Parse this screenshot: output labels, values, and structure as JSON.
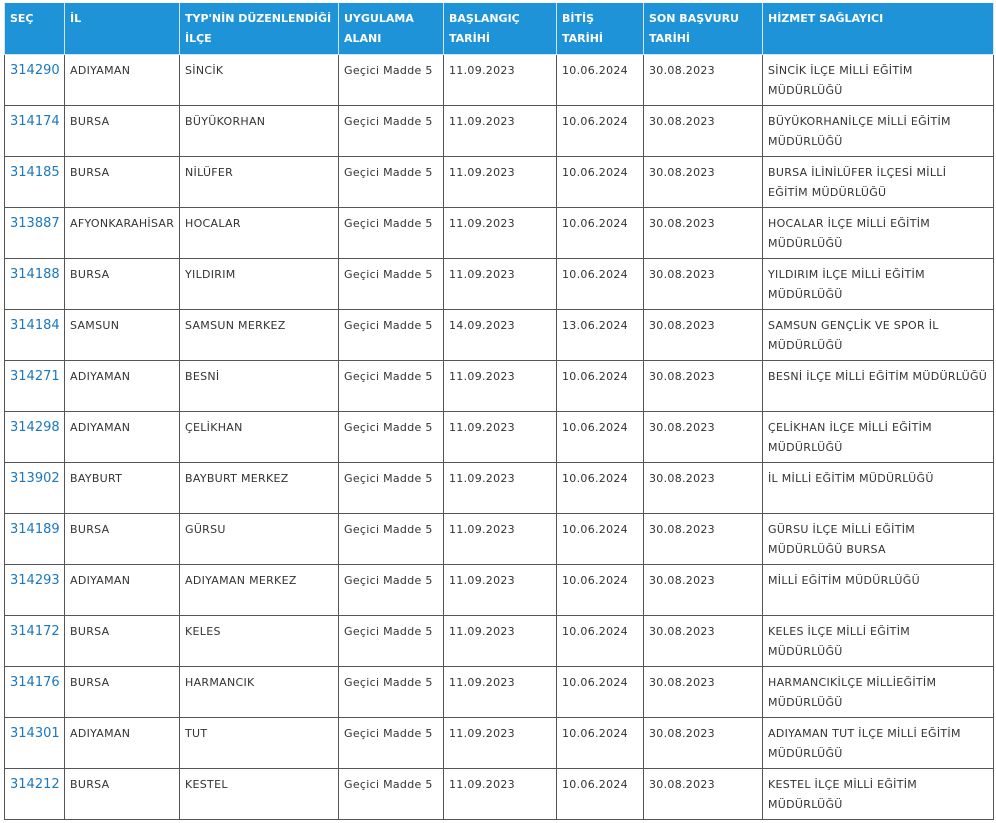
{
  "table": {
    "headers": [
      "SEÇ",
      "İL",
      "TYP'NİN DÜZENLENDİĞİ İLÇE",
      "UYGULAMA ALANI",
      "BAŞLANGIÇ TARİHİ",
      "BİTİŞ TARİHİ",
      "SON BAŞVURU TARİHİ",
      "HİZMET SAĞLAYICI"
    ],
    "rows": [
      [
        "314290",
        "ADIYAMAN",
        "SİNCİK",
        "Geçici Madde 5",
        "11.09.2023",
        "10.06.2024",
        "30.08.2023",
        "SİNCİK İLÇE MİLLİ EĞİTİM MÜDÜRLÜĞÜ"
      ],
      [
        "314174",
        "BURSA",
        "BÜYÜKORHAN",
        "Geçici Madde 5",
        "11.09.2023",
        "10.06.2024",
        "30.08.2023",
        "BÜYÜKORHANİLÇE MİLLİ EĞİTİM MÜDÜRLÜĞÜ"
      ],
      [
        "314185",
        "BURSA",
        "NİLÜFER",
        "Geçici Madde 5",
        "11.09.2023",
        "10.06.2024",
        "30.08.2023",
        "BURSA İLİNİLÜFER İLÇESİ MİLLİ EĞİTİM MÜDÜRLÜĞÜ"
      ],
      [
        "313887",
        "AFYONKARAHİSAR",
        "HOCALAR",
        "Geçici Madde 5",
        "11.09.2023",
        "10.06.2024",
        "30.08.2023",
        "HOCALAR İLÇE MİLLİ EĞİTİM MÜDÜRLÜĞÜ"
      ],
      [
        "314188",
        "BURSA",
        "YILDIRIM",
        "Geçici Madde 5",
        "11.09.2023",
        "10.06.2024",
        "30.08.2023",
        "YILDIRIM İLÇE MİLLİ EĞİTİM MÜDÜRLÜĞÜ"
      ],
      [
        "314184",
        "SAMSUN",
        "SAMSUN MERKEZ",
        "Geçici Madde 5",
        "14.09.2023",
        "13.06.2024",
        "30.08.2023",
        "SAMSUN GENÇLİK VE SPOR İL MÜDÜRLÜĞÜ"
      ],
      [
        "314271",
        "ADIYAMAN",
        "BESNİ",
        "Geçici Madde 5",
        "11.09.2023",
        "10.06.2024",
        "30.08.2023",
        "BESNİ İLÇE MİLLİ EĞİTİM MÜDÜRLÜĞÜ"
      ],
      [
        "314298",
        "ADIYAMAN",
        "ÇELİKHAN",
        "Geçici Madde 5",
        "11.09.2023",
        "10.06.2024",
        "30.08.2023",
        "ÇELİKHAN İLÇE MİLLİ EĞİTİM MÜDÜRLÜĞÜ"
      ],
      [
        "313902",
        "BAYBURT",
        "BAYBURT MERKEZ",
        "Geçici Madde 5",
        "11.09.2023",
        "10.06.2024",
        "30.08.2023",
        "İL MİLLİ EĞİTİM MÜDÜRLÜĞÜ"
      ],
      [
        "314189",
        "BURSA",
        "GÜRSU",
        "Geçici Madde 5",
        "11.09.2023",
        "10.06.2024",
        "30.08.2023",
        "GÜRSU İLÇE MİLLİ EĞİTİM MÜDÜRLÜĞÜ BURSA"
      ],
      [
        "314293",
        "ADIYAMAN",
        "ADIYAMAN MERKEZ",
        "Geçici Madde 5",
        "11.09.2023",
        "10.06.2024",
        "30.08.2023",
        "MİLLİ EĞİTİM MÜDÜRLÜĞÜ"
      ],
      [
        "314172",
        "BURSA",
        "KELES",
        "Geçici Madde 5",
        "11.09.2023",
        "10.06.2024",
        "30.08.2023",
        "KELES İLÇE MİLLİ EĞİTİM MÜDÜRLÜĞÜ"
      ],
      [
        "314176",
        "BURSA",
        "HARMANCIK",
        "Geçici Madde 5",
        "11.09.2023",
        "10.06.2024",
        "30.08.2023",
        "HARMANCIKİLÇE MİLLİEĞİTİM MÜDÜRLÜĞÜ"
      ],
      [
        "314301",
        "ADIYAMAN",
        "TUT",
        "Geçici Madde 5",
        "11.09.2023",
        "10.06.2024",
        "30.08.2023",
        "ADIYAMAN TUT İLÇE MİLLİ EĞİTİM MÜDÜRLÜĞÜ"
      ],
      [
        "314212",
        "BURSA",
        "KESTEL",
        "Geçici Madde 5",
        "11.09.2023",
        "10.06.2024",
        "30.08.2023",
        "KESTEL İLÇE MİLLİ EĞİTİM MÜDÜRLÜĞÜ"
      ]
    ]
  }
}
